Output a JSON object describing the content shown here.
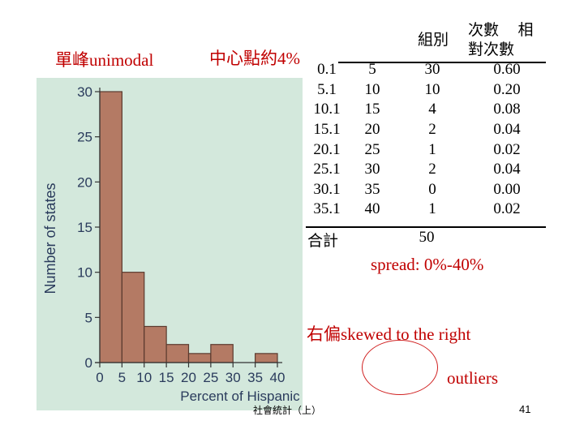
{
  "annotations": {
    "unimodal": "單峰unimodal",
    "center": "中心點約4%",
    "spread": "spread: 0%-40%",
    "skew": "右偏skewed to the right",
    "outliers": "outliers",
    "footer": "社會統計（上）",
    "page_number": "41"
  },
  "table": {
    "headers": [
      "組別",
      "次數",
      "相對次數"
    ],
    "rows": [
      [
        "0.1",
        "5",
        "30",
        "0.60"
      ],
      [
        "5.1",
        "10",
        "10",
        "0.20"
      ],
      [
        "10.1",
        "15",
        "4",
        "0.08"
      ],
      [
        "15.1",
        "20",
        "2",
        "0.04"
      ],
      [
        "20.1",
        "25",
        "1",
        "0.02"
      ],
      [
        "25.1",
        "30",
        "2",
        "0.04"
      ],
      [
        "30.1",
        "35",
        "0",
        "0.00"
      ],
      [
        "35.1",
        "40",
        "1",
        "0.02"
      ]
    ],
    "total_label": "合計",
    "total_value": "50"
  },
  "colors": {
    "panel_bg": "#d3e8dc",
    "bar_fill": "#b47a64",
    "bar_stroke": "#5a3a2e",
    "axis_text": "#2a3b5c",
    "annotation": "#c00000"
  },
  "chart_data": {
    "type": "bar",
    "title": "",
    "xlabel": "Percent of Hispanic adults",
    "ylabel": "Number of states",
    "bins": [
      [
        0,
        5
      ],
      [
        5,
        10
      ],
      [
        10,
        15
      ],
      [
        15,
        20
      ],
      [
        20,
        25
      ],
      [
        25,
        30
      ],
      [
        30,
        35
      ],
      [
        35,
        40
      ]
    ],
    "values": [
      30,
      10,
      4,
      2,
      1,
      2,
      0,
      1
    ],
    "xlim": [
      0,
      40
    ],
    "ylim": [
      0,
      30
    ],
    "xticks": [
      0,
      5,
      10,
      15,
      20,
      25,
      30,
      35,
      40
    ],
    "yticks": [
      0,
      5,
      10,
      15,
      20,
      25,
      30
    ]
  }
}
